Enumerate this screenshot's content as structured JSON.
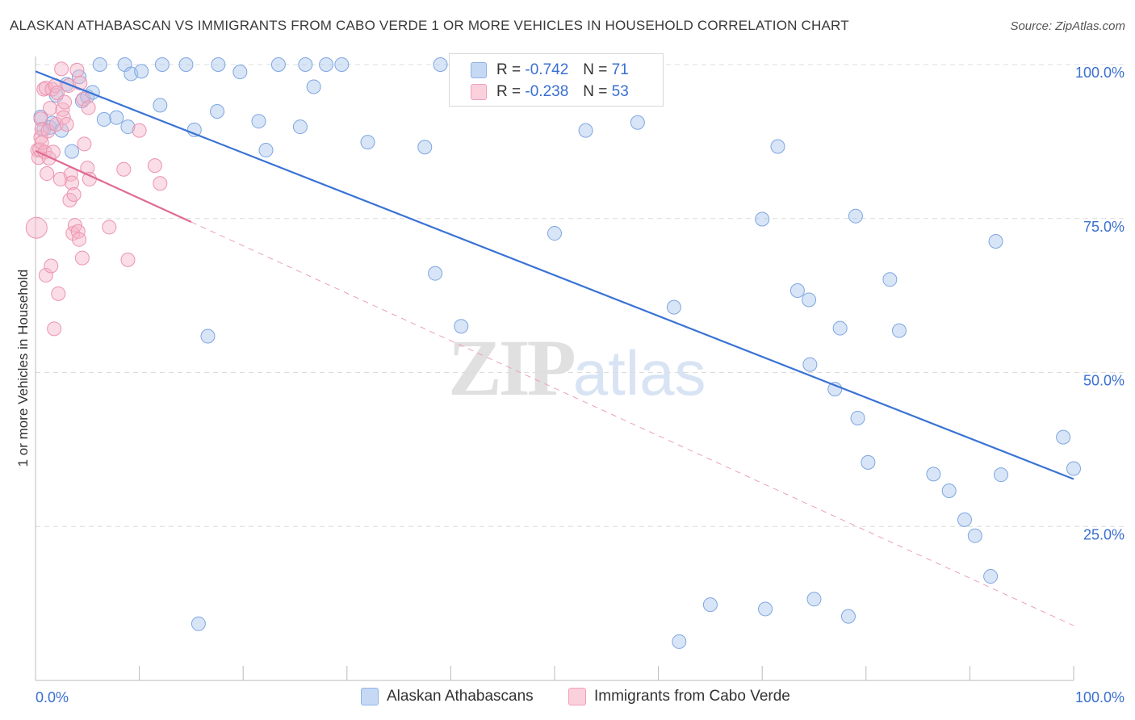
{
  "title": "ALASKAN ATHABASCAN VS IMMIGRANTS FROM CABO VERDE 1 OR MORE VEHICLES IN HOUSEHOLD CORRELATION CHART",
  "source": "Source: ZipAtlas.com",
  "watermark": {
    "zip": "ZIP",
    "atlas": "atlas"
  },
  "legend": {
    "rows": [
      {
        "r_label": "R = ",
        "r_value": "-0.742",
        "n_label": "N = ",
        "n_value": "71",
        "color": "#a9c6ee"
      },
      {
        "r_label": "R = ",
        "r_value": "-0.238",
        "n_label": "N = ",
        "n_value": "53",
        "color": "#f5b4c8"
      }
    ]
  },
  "bottom_legend": [
    {
      "label": "Alaskan Athabascans",
      "color": "#a9c6ee"
    },
    {
      "label": "Immigrants from Cabo Verde",
      "color": "#f5b4c8"
    }
  ],
  "chart_data": {
    "type": "scatter",
    "ylabel": "1 or more Vehicles in Household",
    "xlabel": "",
    "xlim": [
      0,
      100
    ],
    "ylim": [
      0,
      102
    ],
    "x_tick_labels": [
      {
        "value": 0,
        "label": "0.0%"
      },
      {
        "value": 100,
        "label": "100.0%"
      }
    ],
    "y_tick_labels": [
      {
        "value": 25,
        "label": "25.0%"
      },
      {
        "value": 50,
        "label": "50.0%"
      },
      {
        "value": 75,
        "label": "75.0%"
      },
      {
        "value": 100,
        "label": "100.0%"
      }
    ],
    "colors": {
      "blue": "#3a73d4",
      "blue_fill": "#a9c6ee",
      "pink": "#e06a92",
      "pink_fill": "#f5b4c8"
    },
    "series": [
      {
        "name": "Alaskan Athabascans",
        "color": "#a9c6ee",
        "trend": {
          "x0": 0,
          "y0": 98.9,
          "x1": 100,
          "y1": 32.7,
          "style": "solid"
        },
        "points": [
          [
            0.5,
            91.5
          ],
          [
            0.8,
            89.5
          ],
          [
            1.4,
            89.8
          ],
          [
            1.6,
            90.5
          ],
          [
            2.0,
            95.0
          ],
          [
            2.5,
            89.3
          ],
          [
            3.0,
            96.8
          ],
          [
            3.5,
            85.9
          ],
          [
            4.2,
            98.0
          ],
          [
            4.5,
            94.1
          ],
          [
            5.0,
            94.8
          ],
          [
            5.5,
            95.5
          ],
          [
            6.2,
            100.0
          ],
          [
            6.6,
            91.1
          ],
          [
            7.8,
            91.4
          ],
          [
            8.6,
            100.0
          ],
          [
            8.9,
            89.9
          ],
          [
            9.2,
            98.5
          ],
          [
            10.2,
            98.9
          ],
          [
            12.0,
            93.4
          ],
          [
            12.2,
            100.0
          ],
          [
            14.5,
            100.0
          ],
          [
            15.3,
            89.4
          ],
          [
            15.7,
            9.2
          ],
          [
            16.6,
            55.9
          ],
          [
            17.5,
            92.4
          ],
          [
            17.6,
            100.0
          ],
          [
            19.7,
            98.8
          ],
          [
            21.5,
            90.8
          ],
          [
            22.2,
            86.1
          ],
          [
            23.4,
            100.0
          ],
          [
            25.5,
            89.9
          ],
          [
            26.0,
            100.0
          ],
          [
            26.8,
            96.4
          ],
          [
            28.0,
            100.0
          ],
          [
            29.5,
            100.0
          ],
          [
            32.0,
            87.4
          ],
          [
            37.5,
            86.6
          ],
          [
            38.5,
            66.1
          ],
          [
            39.0,
            100.0
          ],
          [
            41.0,
            57.5
          ],
          [
            50.0,
            72.6
          ],
          [
            53.0,
            89.3
          ],
          [
            58.0,
            90.6
          ],
          [
            61.5,
            60.6
          ],
          [
            62.0,
            6.3
          ],
          [
            65.0,
            12.3
          ],
          [
            70.0,
            74.9
          ],
          [
            70.3,
            11.6
          ],
          [
            71.5,
            86.7
          ],
          [
            73.4,
            63.3
          ],
          [
            74.5,
            61.8
          ],
          [
            74.6,
            51.3
          ],
          [
            75.0,
            13.2
          ],
          [
            77.0,
            47.3
          ],
          [
            77.5,
            57.2
          ],
          [
            78.3,
            10.4
          ],
          [
            79.0,
            75.4
          ],
          [
            79.2,
            42.6
          ],
          [
            80.2,
            35.4
          ],
          [
            82.3,
            65.1
          ],
          [
            83.2,
            56.8
          ],
          [
            86.5,
            33.5
          ],
          [
            88.0,
            30.8
          ],
          [
            89.5,
            26.1
          ],
          [
            90.5,
            23.5
          ],
          [
            92.0,
            16.9
          ],
          [
            92.5,
            71.3
          ],
          [
            93.0,
            33.4
          ],
          [
            99.0,
            39.5
          ],
          [
            100.0,
            34.4
          ]
        ]
      },
      {
        "name": "Immigrants from Cabo Verde",
        "color": "#f5b4c8",
        "trend": {
          "x0": 0,
          "y0": 86.0,
          "x1": 100,
          "y1": 8.9,
          "solid_until_x": 15.0,
          "style": "solid-then-dashed"
        },
        "points": [
          [
            0.1,
            73.5
          ],
          [
            0.2,
            86.1
          ],
          [
            0.3,
            84.9
          ],
          [
            0.4,
            86.2
          ],
          [
            0.5,
            88.2
          ],
          [
            0.5,
            91.2
          ],
          [
            0.6,
            89.5
          ],
          [
            0.6,
            87.3
          ],
          [
            0.8,
            96.0
          ],
          [
            0.9,
            85.8
          ],
          [
            1.0,
            96.2
          ],
          [
            1.0,
            65.8
          ],
          [
            1.1,
            82.3
          ],
          [
            1.2,
            89.2
          ],
          [
            1.3,
            84.8
          ],
          [
            1.4,
            92.9
          ],
          [
            1.5,
            67.3
          ],
          [
            1.6,
            96.0
          ],
          [
            1.7,
            85.8
          ],
          [
            1.8,
            57.1
          ],
          [
            1.9,
            96.6
          ],
          [
            2.0,
            90.3
          ],
          [
            2.1,
            95.4
          ],
          [
            2.2,
            62.8
          ],
          [
            2.4,
            81.4
          ],
          [
            2.5,
            99.3
          ],
          [
            2.6,
            92.7
          ],
          [
            2.7,
            91.4
          ],
          [
            2.8,
            93.9
          ],
          [
            3.0,
            90.3
          ],
          [
            3.2,
            96.6
          ],
          [
            3.3,
            78.0
          ],
          [
            3.4,
            82.2
          ],
          [
            3.5,
            80.8
          ],
          [
            3.6,
            72.6
          ],
          [
            3.7,
            78.9
          ],
          [
            3.8,
            73.9
          ],
          [
            4.0,
            99.1
          ],
          [
            4.1,
            72.9
          ],
          [
            4.2,
            71.6
          ],
          [
            4.3,
            97.0
          ],
          [
            4.5,
            68.6
          ],
          [
            4.6,
            94.4
          ],
          [
            4.7,
            87.1
          ],
          [
            5.0,
            83.2
          ],
          [
            5.1,
            93.0
          ],
          [
            5.2,
            81.4
          ],
          [
            7.1,
            73.6
          ],
          [
            8.5,
            83.0
          ],
          [
            8.9,
            68.3
          ],
          [
            10.0,
            89.3
          ],
          [
            11.5,
            83.6
          ],
          [
            12.0,
            80.7
          ]
        ]
      }
    ]
  }
}
